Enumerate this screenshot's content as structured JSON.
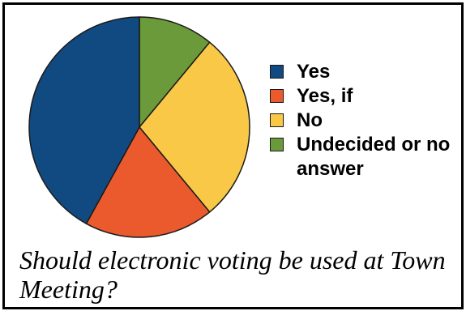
{
  "chart_data": {
    "type": "pie",
    "title": "Should electronic voting be used at Town Meeting?",
    "start_angle_deg": 0,
    "direction": "clockwise",
    "slices": [
      {
        "label": "Undecided or no answer",
        "value": 11,
        "color": "#6b9a3a"
      },
      {
        "label": "No",
        "value": 28,
        "color": "#f9c847"
      },
      {
        "label": "Yes, if",
        "value": 19,
        "color": "#ea5a2d"
      },
      {
        "label": "Yes",
        "value": 42,
        "color": "#114a80"
      }
    ],
    "legend": {
      "placement": "right",
      "order": [
        "Yes",
        "Yes, if",
        "No",
        "Undecided or no answer"
      ]
    }
  }
}
